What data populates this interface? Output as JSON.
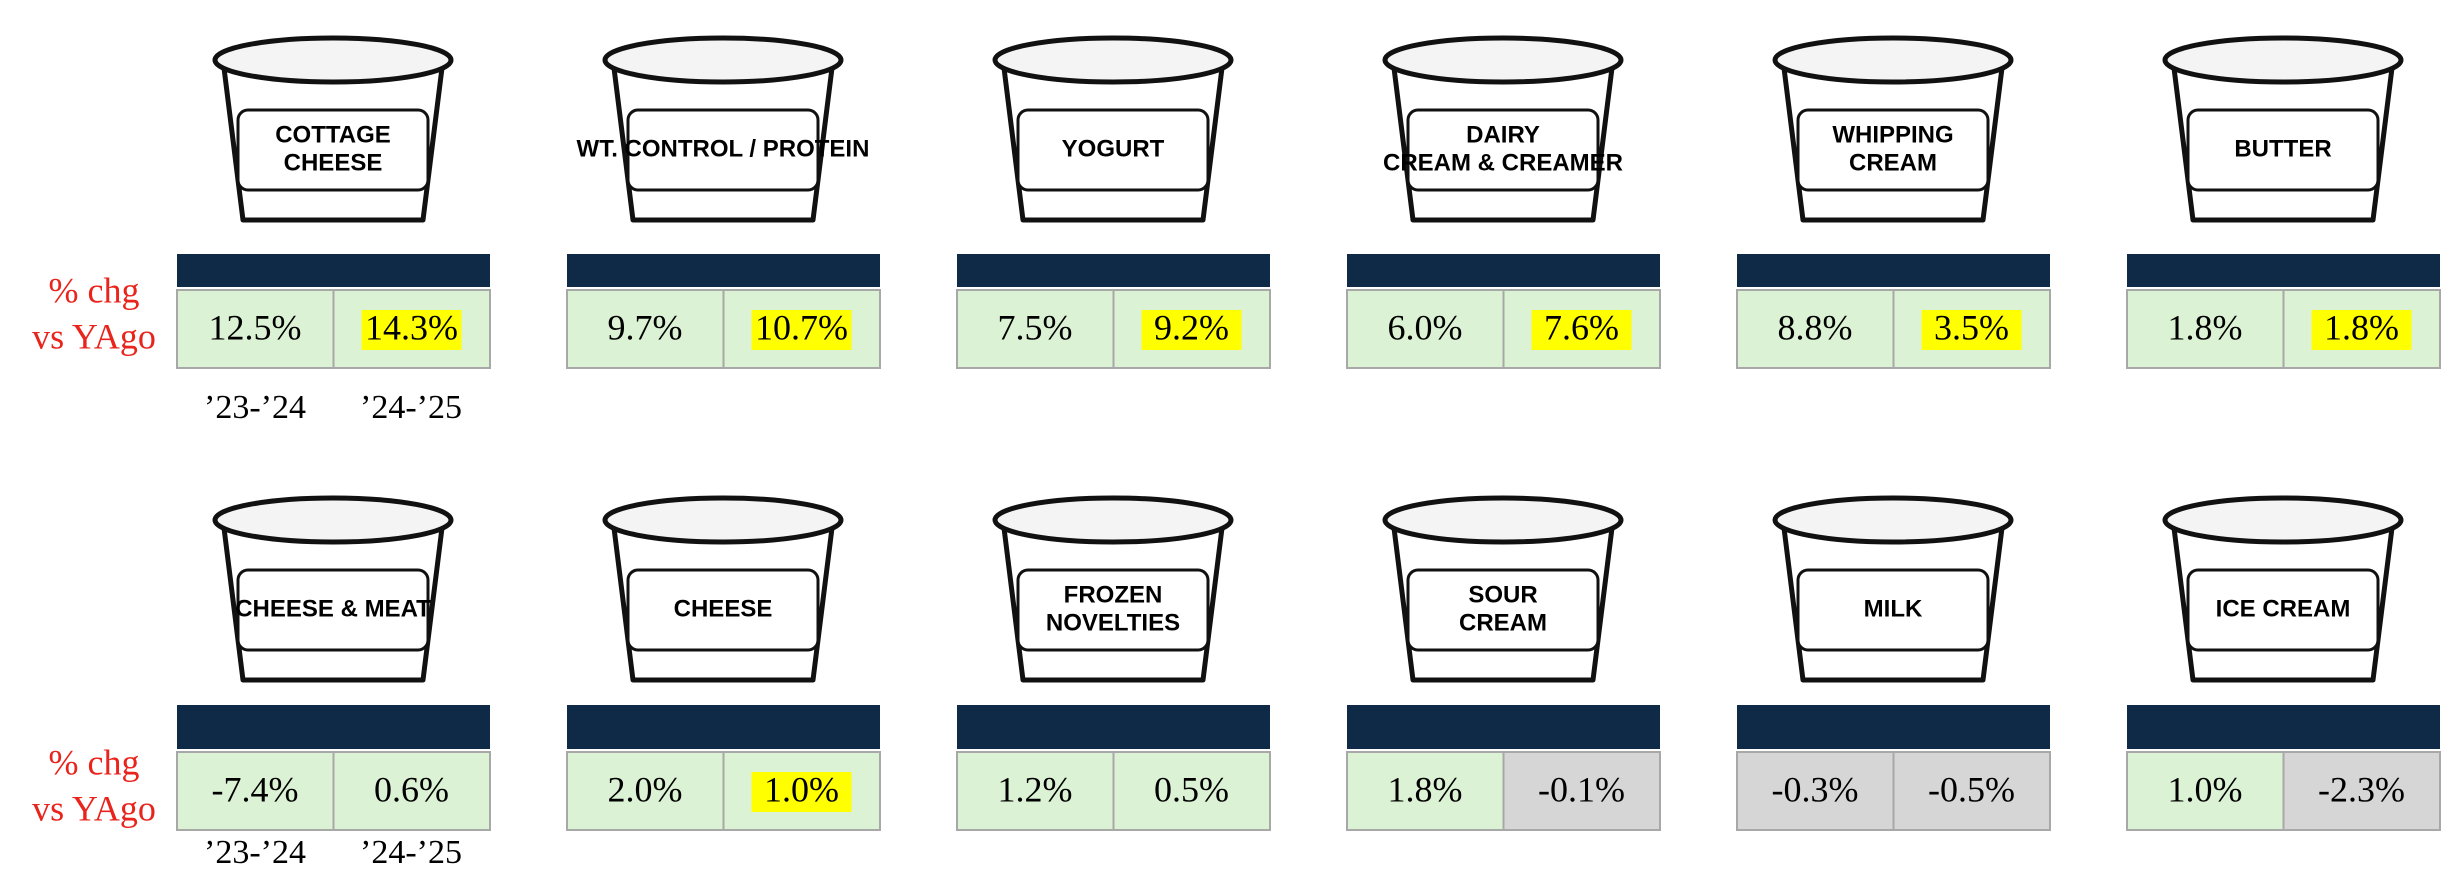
{
  "rows": [
    {
      "row_label": [
        "% chg",
        "vs YAgo"
      ],
      "periods": [
        "’23-’24",
        "’24-’25"
      ],
      "items": [
        {
          "name": [
            "COTTAGE",
            "CHEESE"
          ],
          "cells": [
            {
              "text": "12.5%",
              "fill": "green",
              "highlight": false
            },
            {
              "text": "14.3%",
              "fill": "green",
              "highlight": true
            }
          ]
        },
        {
          "name": [
            "WT. CONTROL / PROTEIN"
          ],
          "cells": [
            {
              "text": "9.7%",
              "fill": "green",
              "highlight": false
            },
            {
              "text": "10.7%",
              "fill": "green",
              "highlight": true
            }
          ]
        },
        {
          "name": [
            "YOGURT"
          ],
          "cells": [
            {
              "text": "7.5%",
              "fill": "green",
              "highlight": false
            },
            {
              "text": "9.2%",
              "fill": "green",
              "highlight": true
            }
          ]
        },
        {
          "name": [
            "DAIRY",
            "CREAM & CREAMER"
          ],
          "cells": [
            {
              "text": "6.0%",
              "fill": "green",
              "highlight": false
            },
            {
              "text": "7.6%",
              "fill": "green",
              "highlight": true
            }
          ]
        },
        {
          "name": [
            "WHIPPING",
            "CREAM"
          ],
          "cells": [
            {
              "text": "8.8%",
              "fill": "green",
              "highlight": false
            },
            {
              "text": "3.5%",
              "fill": "green",
              "highlight": true
            }
          ]
        },
        {
          "name": [
            "BUTTER"
          ],
          "cells": [
            {
              "text": "1.8%",
              "fill": "green",
              "highlight": false
            },
            {
              "text": "1.8%",
              "fill": "green",
              "highlight": true
            }
          ]
        }
      ]
    },
    {
      "row_label": [
        "% chg",
        "vs YAgo"
      ],
      "periods": [
        "’23-’24",
        "’24-’25"
      ],
      "items": [
        {
          "name": [
            "CHEESE & MEAT"
          ],
          "cells": [
            {
              "text": "-7.4%",
              "fill": "green",
              "highlight": false
            },
            {
              "text": "0.6%",
              "fill": "green",
              "highlight": false
            }
          ]
        },
        {
          "name": [
            "CHEESE"
          ],
          "cells": [
            {
              "text": "2.0%",
              "fill": "green",
              "highlight": false
            },
            {
              "text": "1.0%",
              "fill": "green",
              "highlight": true
            }
          ]
        },
        {
          "name": [
            "FROZEN",
            "NOVELTIES"
          ],
          "cells": [
            {
              "text": "1.2%",
              "fill": "green",
              "highlight": false
            },
            {
              "text": "0.5%",
              "fill": "green",
              "highlight": false
            }
          ]
        },
        {
          "name": [
            "SOUR",
            "CREAM"
          ],
          "cells": [
            {
              "text": "1.8%",
              "fill": "green",
              "highlight": false
            },
            {
              "text": "-0.1%",
              "fill": "gray",
              "highlight": false
            }
          ]
        },
        {
          "name": [
            "MILK"
          ],
          "cells": [
            {
              "text": "-0.3%",
              "fill": "gray",
              "highlight": false
            },
            {
              "text": "-0.5%",
              "fill": "gray",
              "highlight": false
            }
          ]
        },
        {
          "name": [
            "ICE CREAM"
          ],
          "cells": [
            {
              "text": "1.0%",
              "fill": "green",
              "highlight": false
            },
            {
              "text": "-2.3%",
              "fill": "gray",
              "highlight": false
            }
          ]
        }
      ]
    }
  ]
}
